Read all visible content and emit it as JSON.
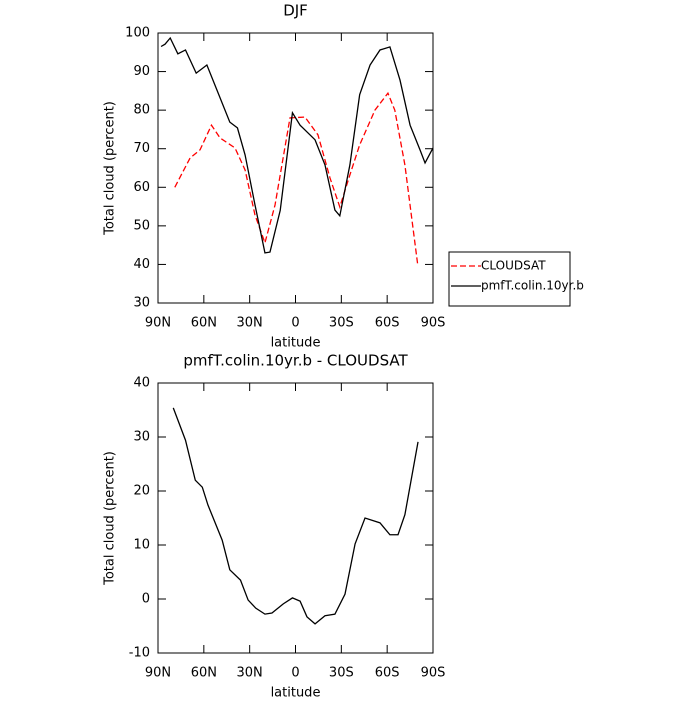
{
  "chart_data": [
    {
      "type": "line",
      "title": "DJF",
      "x_label": "latitude",
      "y_label": "Total cloud (percent)",
      "xlim": [
        90,
        -90
      ],
      "ylim": [
        30,
        100
      ],
      "xticks": [
        {
          "value": 90,
          "label": "90N"
        },
        {
          "value": 60,
          "label": "60N"
        },
        {
          "value": 30,
          "label": "30N"
        },
        0,
        {
          "value": -30,
          "label": "30S"
        },
        {
          "value": -60,
          "label": "60S"
        },
        {
          "value": -90,
          "label": "90S"
        }
      ],
      "yticks": [
        30,
        40,
        50,
        60,
        70,
        80,
        90,
        100
      ],
      "legend": "right",
      "series": [
        {
          "name": "CLOUDSAT",
          "color": "#ff0000",
          "dashed": true,
          "x": [
            79,
            69,
            62.5,
            55,
            49.4,
            39.6,
            33,
            26.5,
            20,
            13.4,
            3.6,
            -6.2,
            -14.7,
            -22.6,
            -29,
            -35.6,
            -42,
            -52,
            -60.5,
            -65,
            -71.6,
            -80
          ],
          "values": [
            60,
            67.6,
            69.7,
            76.1,
            72.8,
            70.2,
            64.5,
            52.8,
            45.6,
            55.4,
            78,
            78.2,
            73.6,
            62.4,
            54.9,
            63.2,
            71,
            80,
            84.4,
            80,
            65.8,
            39.9
          ]
        },
        {
          "name": "pmfT.colin.10yr.b",
          "color": "#000000",
          "dashed": false,
          "x": [
            88,
            85.4,
            82,
            77,
            72,
            65,
            58,
            51.4,
            43,
            38,
            33,
            26.5,
            20,
            16.7,
            10,
            2,
            -3,
            -12.8,
            -19.3,
            -25.8,
            -29,
            -35.6,
            -42,
            -48.8,
            -55.3,
            -61.8,
            -68.4,
            -75,
            -81.5,
            -84.8,
            -90
          ],
          "values": [
            96.5,
            97.1,
            98.7,
            94.6,
            95.6,
            89.6,
            91.7,
            85.2,
            76.9,
            75.4,
            68.4,
            55.4,
            43,
            43.2,
            54,
            79.3,
            76.1,
            72.3,
            65.8,
            54.1,
            52.6,
            65.8,
            84,
            91.7,
            95.6,
            96.4,
            87.8,
            76.1,
            69.7,
            66.3,
            70.2
          ]
        }
      ]
    },
    {
      "type": "line",
      "title": "pmfT.colin.10yr.b - CLOUDSAT",
      "x_label": "latitude",
      "y_label": "Total cloud (percent)",
      "xlim": [
        90,
        -90
      ],
      "ylim": [
        -10,
        40
      ],
      "xticks": [
        {
          "value": 90,
          "label": "90N"
        },
        {
          "value": 60,
          "label": "60N"
        },
        {
          "value": 30,
          "label": "30N"
        },
        0,
        {
          "value": -30,
          "label": "30S"
        },
        {
          "value": -60,
          "label": "60S"
        },
        {
          "value": -90,
          "label": "90S"
        }
      ],
      "yticks": [
        -10,
        0,
        10,
        20,
        30,
        40
      ],
      "series": [
        {
          "color": "#000000",
          "dashed": false,
          "x": [
            80,
            72,
            65.6,
            61,
            57.3,
            48,
            43,
            36,
            31,
            26,
            20,
            15.4,
            8,
            2,
            -3,
            -7.5,
            -12.8,
            -19.3,
            -25.8,
            -32.4,
            -39,
            -45.5,
            -55.3,
            -61.8,
            -67.1,
            -71.6,
            -80.2
          ],
          "values": [
            35.4,
            29.4,
            22,
            20.7,
            17.4,
            10.9,
            5.4,
            3.5,
            -0.2,
            -1.7,
            -2.8,
            -2.6,
            -0.9,
            0.2,
            -0.4,
            -3.3,
            -4.6,
            -3.1,
            -2.8,
            0.9,
            10.2,
            15,
            14.1,
            11.9,
            11.9,
            15.6,
            29.1
          ]
        }
      ]
    }
  ]
}
